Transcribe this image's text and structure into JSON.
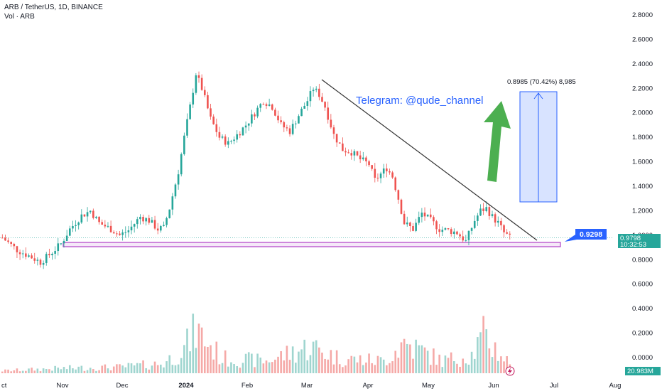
{
  "header": {
    "title": "ARB / TetherUS, 1D, BINANCE",
    "vol_label": "Vol · ARB"
  },
  "colors": {
    "up": "#26a69a",
    "down": "#ef5350",
    "vol_up": "#9fd5cf",
    "vol_down": "#f5a9a7",
    "trendline": "#333333",
    "support_box": "#b03fc6",
    "projection": "#2962ff",
    "arrow": "#4caf50",
    "annotation": "#2962ff"
  },
  "chart_data": {
    "type": "candlestick",
    "symbol": "ARB / TetherUS",
    "interval": "1D",
    "exchange": "BINANCE",
    "price_axis": {
      "ticks": [
        "2.8000",
        "2.6000",
        "2.4000",
        "2.2000",
        "2.0000",
        "1.8000",
        "1.6000",
        "1.4000",
        "1.2000",
        "1.0000",
        "0.8000",
        "0.6000",
        "0.4000",
        "0.2000",
        "0.0000"
      ],
      "range": [
        0.0,
        2.8
      ]
    },
    "time_axis": {
      "ticks": [
        "ct",
        "Nov",
        "Dec",
        "2024",
        "Feb",
        "Mar",
        "Apr",
        "May",
        "Jun",
        "Jul",
        "Aug"
      ]
    },
    "price_path": [
      [
        0,
        0.98
      ],
      [
        5,
        0.88
      ],
      [
        10,
        0.82
      ],
      [
        13,
        0.78
      ],
      [
        16,
        0.84
      ],
      [
        20,
        0.93
      ],
      [
        23,
        1.05
      ],
      [
        27,
        1.16
      ],
      [
        30,
        1.2
      ],
      [
        33,
        1.1
      ],
      [
        37,
        1.05
      ],
      [
        40,
        1.0
      ],
      [
        43,
        1.04
      ],
      [
        47,
        1.15
      ],
      [
        50,
        1.12
      ],
      [
        53,
        1.05
      ],
      [
        55,
        1.06
      ],
      [
        57,
        1.22
      ],
      [
        60,
        1.52
      ],
      [
        62,
        1.8
      ],
      [
        64,
        2.05
      ],
      [
        66,
        2.32
      ],
      [
        68,
        2.2
      ],
      [
        71,
        1.95
      ],
      [
        74,
        1.8
      ],
      [
        77,
        1.75
      ],
      [
        80,
        1.82
      ],
      [
        83,
        1.9
      ],
      [
        86,
        2.0
      ],
      [
        89,
        2.1
      ],
      [
        92,
        2.05
      ],
      [
        95,
        1.9
      ],
      [
        98,
        1.85
      ],
      [
        101,
        1.98
      ],
      [
        104,
        2.1
      ],
      [
        106,
        2.2
      ],
      [
        108,
        2.15
      ],
      [
        110,
        2.05
      ],
      [
        113,
        1.82
      ],
      [
        116,
        1.7
      ],
      [
        119,
        1.68
      ],
      [
        122,
        1.62
      ],
      [
        125,
        1.58
      ],
      [
        127,
        1.45
      ],
      [
        129,
        1.5
      ],
      [
        131,
        1.55
      ],
      [
        133,
        1.48
      ],
      [
        135,
        1.3
      ],
      [
        137,
        1.1
      ],
      [
        140,
        1.05
      ],
      [
        143,
        1.18
      ],
      [
        146,
        1.12
      ],
      [
        149,
        1.05
      ],
      [
        152,
        1.04
      ],
      [
        155,
        1.02
      ],
      [
        158,
        0.95
      ],
      [
        161,
        1.12
      ],
      [
        163,
        1.2
      ],
      [
        165,
        1.22
      ],
      [
        167,
        1.15
      ],
      [
        169,
        1.1
      ],
      [
        171,
        1.02
      ],
      [
        173,
        0.98
      ]
    ],
    "volume_path": [
      [
        0,
        0.02
      ],
      [
        20,
        0.04
      ],
      [
        40,
        0.05
      ],
      [
        55,
        0.08
      ],
      [
        62,
        0.2
      ],
      [
        66,
        0.35
      ],
      [
        75,
        0.12
      ],
      [
        90,
        0.1
      ],
      [
        105,
        0.22
      ],
      [
        115,
        0.12
      ],
      [
        130,
        0.1
      ],
      [
        137,
        0.25
      ],
      [
        150,
        0.1
      ],
      [
        160,
        0.15
      ],
      [
        164,
        0.3
      ],
      [
        173,
        0.08
      ]
    ],
    "last_price": "0.9798",
    "countdown": "10:32:53",
    "key_level": "0.9298",
    "volume_last": "20.983M",
    "projection": {
      "label": "0.8985 (70.42%) 8,985",
      "from": 1.28,
      "to": 2.17
    },
    "trendline": {
      "from": [
        2.27,
        "Mar"
      ],
      "to": [
        0.92,
        "Jun"
      ]
    },
    "support_zone": [
      0.91,
      0.95
    ],
    "annotation": "Telegram: @qude_channel"
  }
}
